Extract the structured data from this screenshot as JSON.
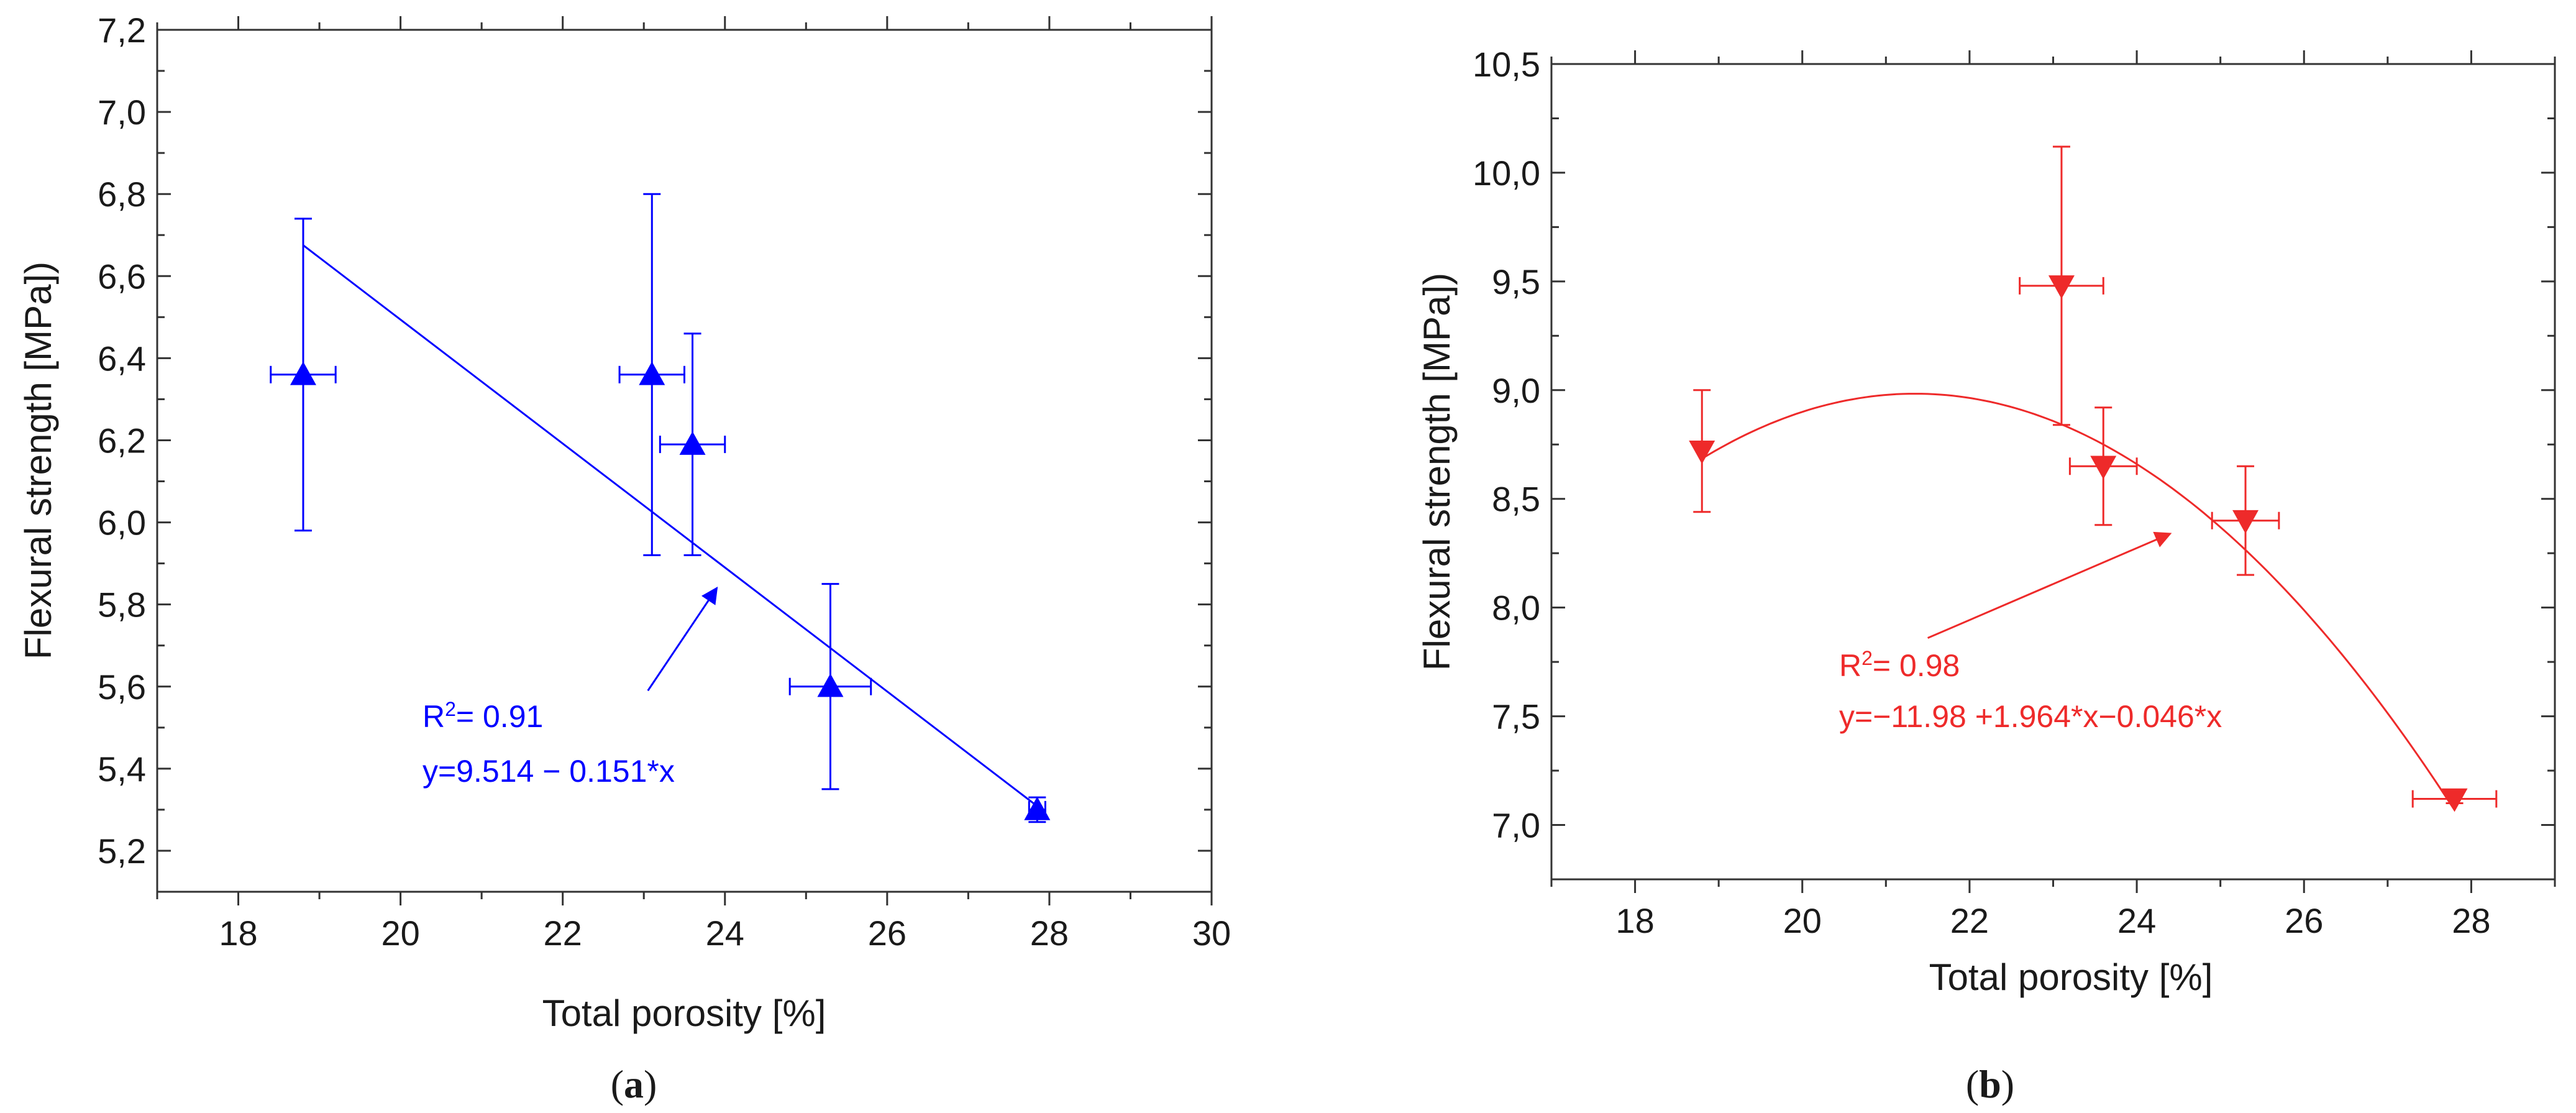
{
  "chart_data": [
    {
      "type": "scatter",
      "panel_label": "a",
      "color": "#0000ff",
      "marker": "triangle-up",
      "xlabel": "Total porosity [%]",
      "ylabel": "Flexural strength [MPa])",
      "xlim": [
        17,
        30
      ],
      "ylim": [
        5.1,
        7.2
      ],
      "xticks": [
        18,
        20,
        22,
        24,
        26,
        28,
        30
      ],
      "yticks": [
        5.2,
        5.4,
        5.6,
        5.8,
        6.0,
        6.2,
        6.4,
        6.6,
        6.8,
        7.0,
        7.2
      ],
      "xtick_labels": [
        "18",
        "20",
        "22",
        "24",
        "26",
        "28",
        "30"
      ],
      "ytick_labels": [
        "5,2",
        "5,4",
        "5,6",
        "5,8",
        "6,0",
        "6,2",
        "6,4",
        "6,6",
        "6,8",
        "7,0",
        "7,2"
      ],
      "points": [
        {
          "x": 18.8,
          "y": 6.36,
          "xerr": 0.4,
          "y_low": 5.98,
          "y_high": 6.74
        },
        {
          "x": 23.1,
          "y": 6.36,
          "xerr": 0.4,
          "y_low": 5.92,
          "y_high": 6.8
        },
        {
          "x": 23.6,
          "y": 6.19,
          "xerr": 0.4,
          "y_low": 5.92,
          "y_high": 6.46
        },
        {
          "x": 25.3,
          "y": 5.6,
          "xerr": 0.5,
          "y_low": 5.35,
          "y_high": 5.85
        },
        {
          "x": 27.85,
          "y": 5.3,
          "xerr": 0.1,
          "y_low": 5.27,
          "y_high": 5.33
        }
      ],
      "fit": {
        "type": "linear",
        "intercept": 9.514,
        "slope": -0.151,
        "x_range": [
          18.8,
          27.85
        ]
      },
      "r2_prefix": "R",
      "r2_sup": "2",
      "r2_value": "= 0.91",
      "equation": "y=9.514 − 0.151*x",
      "arrow": {
        "from": [
          23.05,
          5.59
        ],
        "to": [
          23.9,
          5.84
        ]
      }
    },
    {
      "type": "scatter",
      "panel_label": "b",
      "color": "#ee2a2a",
      "marker": "triangle-down",
      "xlabel": "Total porosity [%]",
      "ylabel": "Flexural strength [MPa])",
      "xlim": [
        17,
        29
      ],
      "ylim": [
        6.75,
        10.5
      ],
      "xticks": [
        18,
        20,
        22,
        24,
        26,
        28
      ],
      "yticks": [
        7.0,
        7.5,
        8.0,
        8.5,
        9.0,
        9.5,
        10.0,
        10.5
      ],
      "xtick_labels": [
        "18",
        "20",
        "22",
        "24",
        "26",
        "28"
      ],
      "ytick_labels": [
        "7,0",
        "7,5",
        "8,0",
        "8,5",
        "9,0",
        "9,5",
        "10,0",
        "10,5"
      ],
      "points": [
        {
          "x": 18.8,
          "y": 8.72,
          "xerr": 0.0,
          "y_low": 8.44,
          "y_high": 9.0
        },
        {
          "x": 23.1,
          "y": 9.48,
          "xerr": 0.5,
          "y_low": 8.84,
          "y_high": 10.12
        },
        {
          "x": 23.6,
          "y": 8.65,
          "xerr": 0.4,
          "y_low": 8.38,
          "y_high": 8.92
        },
        {
          "x": 25.3,
          "y": 8.4,
          "xerr": 0.4,
          "y_low": 8.15,
          "y_high": 8.65
        },
        {
          "x": 27.8,
          "y": 7.12,
          "xerr": 0.5,
          "y_low": 7.1,
          "y_high": 7.14
        }
      ],
      "fit": {
        "type": "quadratic",
        "a": -11.98,
        "b": 1.964,
        "c": -0.046,
        "x_range": [
          18.8,
          27.8
        ]
      },
      "r2_prefix": "R",
      "r2_sup": "2",
      "r2_value": "= 0.98",
      "equation": "y=−11.98 +1.964*x−0.046*x",
      "arrow": {
        "from": [
          21.5,
          7.86
        ],
        "to": [
          24.4,
          8.34
        ]
      }
    }
  ]
}
